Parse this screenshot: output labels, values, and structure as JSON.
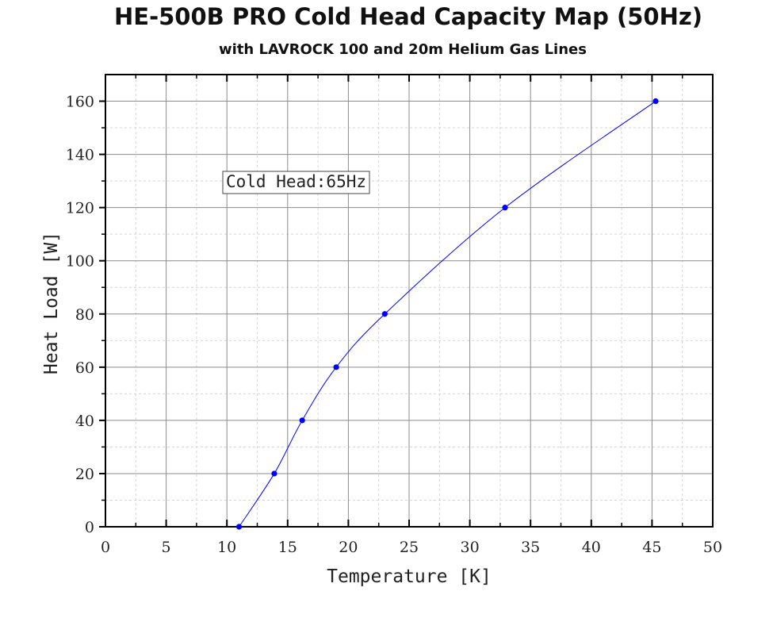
{
  "chart_data": {
    "type": "line",
    "title": "HE-500B PRO Cold Head Capacity Map (50Hz)",
    "subtitle": "with LAVROCK 100 and 20m Helium Gas Lines",
    "xlabel": "Temperature [K]",
    "ylabel": "Heat Load [W]",
    "xlim": [
      0,
      50
    ],
    "ylim": [
      0,
      170
    ],
    "x_ticks": [
      0,
      5,
      10,
      15,
      20,
      25,
      30,
      35,
      40,
      45,
      50
    ],
    "y_ticks": [
      0,
      20,
      40,
      60,
      80,
      100,
      120,
      140,
      160
    ],
    "grid": true,
    "line_color": "#0000ff",
    "annotation": "Cold Head:65Hz",
    "series": [
      {
        "x": [
          11.0,
          13.9,
          16.2,
          19.0,
          23.0,
          32.9,
          45.3
        ],
        "y": [
          0,
          20,
          40,
          60,
          80,
          120,
          160
        ]
      }
    ]
  }
}
